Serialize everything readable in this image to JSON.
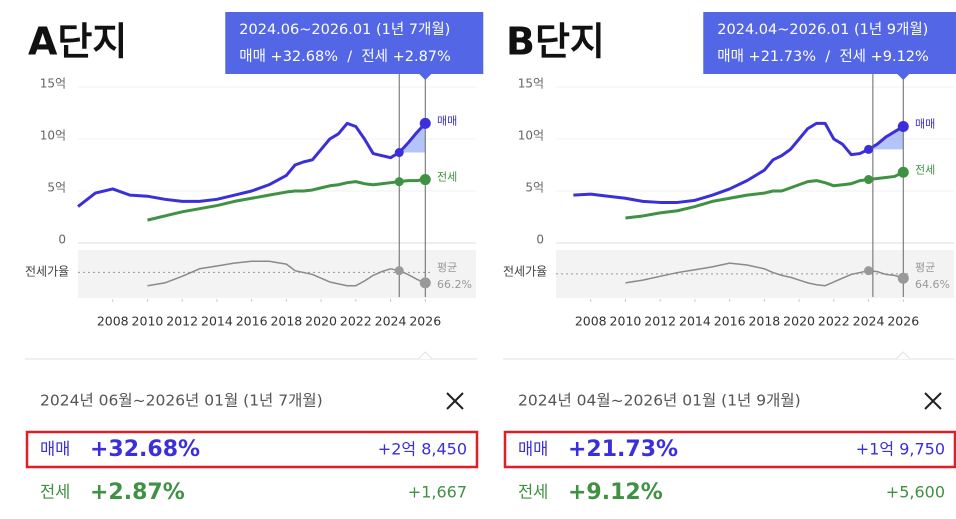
{
  "chart_data": [
    {
      "type": "line",
      "title": "A단지",
      "tooltip": [
        "2024.06~2026.01 (1년 7개월)",
        "매매 +32.68%  /  전세 +2.87%"
      ],
      "x": [
        2006,
        2007,
        2008,
        2009,
        2010,
        2011,
        2012,
        2013,
        2014,
        2015,
        2016,
        2017,
        2018,
        2018.5,
        2019,
        2019.5,
        2020,
        2020.5,
        2021,
        2021.5,
        2022,
        2022.5,
        2023,
        2023.5,
        2024,
        2024.5,
        2025,
        2025.5,
        2026
      ],
      "xlim": [
        2006,
        2028
      ],
      "xticks": [
        2008,
        2010,
        2012,
        2014,
        2016,
        2018,
        2020,
        2022,
        2024,
        2026
      ],
      "ylim": [
        0,
        15
      ],
      "yticks": [
        0,
        {
          "value": 5,
          "label": "5억"
        },
        {
          "value": 10,
          "label": "10억"
        },
        {
          "value": 15,
          "label": "15억"
        }
      ],
      "y2lim": [
        40,
        90
      ],
      "highlight_x": [
        2024.5,
        2026
      ],
      "series": [
        {
          "name": "매매",
          "color": "#3a2fd8",
          "values": [
            3.5,
            4.8,
            5.2,
            4.6,
            4.5,
            4.2,
            4.0,
            4.0,
            4.2,
            4.6,
            5.0,
            5.6,
            6.5,
            7.5,
            7.8,
            8.0,
            9.0,
            10.0,
            10.5,
            11.5,
            11.2,
            10.0,
            8.6,
            8.4,
            8.2,
            8.7,
            9.6,
            10.6,
            11.5
          ]
        },
        {
          "name": "전세",
          "color": "#3f9143",
          "values": [
            null,
            null,
            null,
            null,
            2.2,
            2.6,
            3.0,
            3.3,
            3.6,
            4.0,
            4.3,
            4.6,
            4.9,
            5.0,
            5.0,
            5.1,
            5.3,
            5.5,
            5.6,
            5.8,
            5.9,
            5.7,
            5.6,
            5.7,
            5.8,
            5.9,
            6.0,
            6.0,
            6.1
          ]
        },
        {
          "name": "전세가율",
          "color": "#8a8a8a",
          "axis": "y2",
          "values": [
            null,
            null,
            null,
            null,
            52,
            55,
            62,
            70,
            73,
            76,
            78,
            78,
            75,
            68,
            66,
            64,
            60,
            56,
            54,
            52,
            52,
            57,
            63,
            67,
            70,
            68,
            64,
            59,
            55
          ],
          "mean": {
            "label": "평균",
            "value": 66.2,
            "value_label": "66.2%"
          }
        }
      ],
      "summary": {
        "period": "2024년 06월~2026년 01월 (1년 7개월)",
        "rows": [
          {
            "name": "매매",
            "change": "+32.68%",
            "amount": "+2억 8,450"
          },
          {
            "name": "전세",
            "change": "+2.87%",
            "amount": "+1,667"
          }
        ]
      }
    },
    {
      "type": "line",
      "title": "B단지",
      "tooltip": [
        "2024.04~2026.01 (1년 9개월)",
        "매매 +21.73%  /  전세 +9.12%"
      ],
      "x": [
        2006,
        2007,
        2008,
        2009,
        2010,
        2011,
        2012,
        2013,
        2014,
        2015,
        2016,
        2017,
        2018,
        2018.5,
        2019,
        2019.5,
        2020,
        2020.5,
        2021,
        2021.5,
        2022,
        2022.5,
        2023,
        2023.5,
        2024,
        2024.5,
        2025,
        2025.5,
        2026
      ],
      "xlim": [
        2006,
        2028
      ],
      "xticks": [
        2008,
        2010,
        2012,
        2014,
        2016,
        2018,
        2020,
        2022,
        2024,
        2026
      ],
      "ylim": [
        0,
        15
      ],
      "yticks": [
        0,
        {
          "value": 5,
          "label": "5억"
        },
        {
          "value": 10,
          "label": "10억"
        },
        {
          "value": 15,
          "label": "15억"
        }
      ],
      "y2lim": [
        40,
        90
      ],
      "highlight_x": [
        2024.25,
        2026
      ],
      "series": [
        {
          "name": "매매",
          "color": "#3a2fd8",
          "values": [
            null,
            4.6,
            4.7,
            4.5,
            4.3,
            4.0,
            3.9,
            3.9,
            4.1,
            4.6,
            5.2,
            6.0,
            7.0,
            8.0,
            8.4,
            9.0,
            10.0,
            11.0,
            11.5,
            11.5,
            10.0,
            9.5,
            8.5,
            8.6,
            9.0,
            9.5,
            10.2,
            10.7,
            11.2
          ]
        },
        {
          "name": "전세",
          "color": "#3f9143",
          "values": [
            null,
            null,
            null,
            null,
            2.4,
            2.6,
            2.9,
            3.1,
            3.5,
            4.0,
            4.3,
            4.6,
            4.8,
            5.0,
            5.0,
            5.3,
            5.6,
            5.9,
            6.0,
            5.8,
            5.5,
            5.6,
            5.7,
            6.0,
            6.1,
            6.2,
            6.3,
            6.4,
            6.8
          ]
        },
        {
          "name": "전세가율",
          "color": "#8a8a8a",
          "axis": "y2",
          "values": [
            null,
            null,
            null,
            null,
            55,
            58,
            62,
            66,
            69,
            72,
            76,
            74,
            70,
            66,
            63,
            61,
            58,
            55,
            53,
            52,
            56,
            60,
            64,
            66,
            68,
            67,
            64,
            63,
            60
          ],
          "mean": {
            "label": "평균",
            "value": 64.6,
            "value_label": "64.6%"
          }
        }
      ],
      "summary": {
        "period": "2024년 04월~2026년 01월 (1년 9개월)",
        "rows": [
          {
            "name": "매매",
            "change": "+21.73%",
            "amount": "+1억 9,750"
          },
          {
            "name": "전세",
            "change": "+9.12%",
            "amount": "+5,600"
          }
        ]
      }
    }
  ]
}
